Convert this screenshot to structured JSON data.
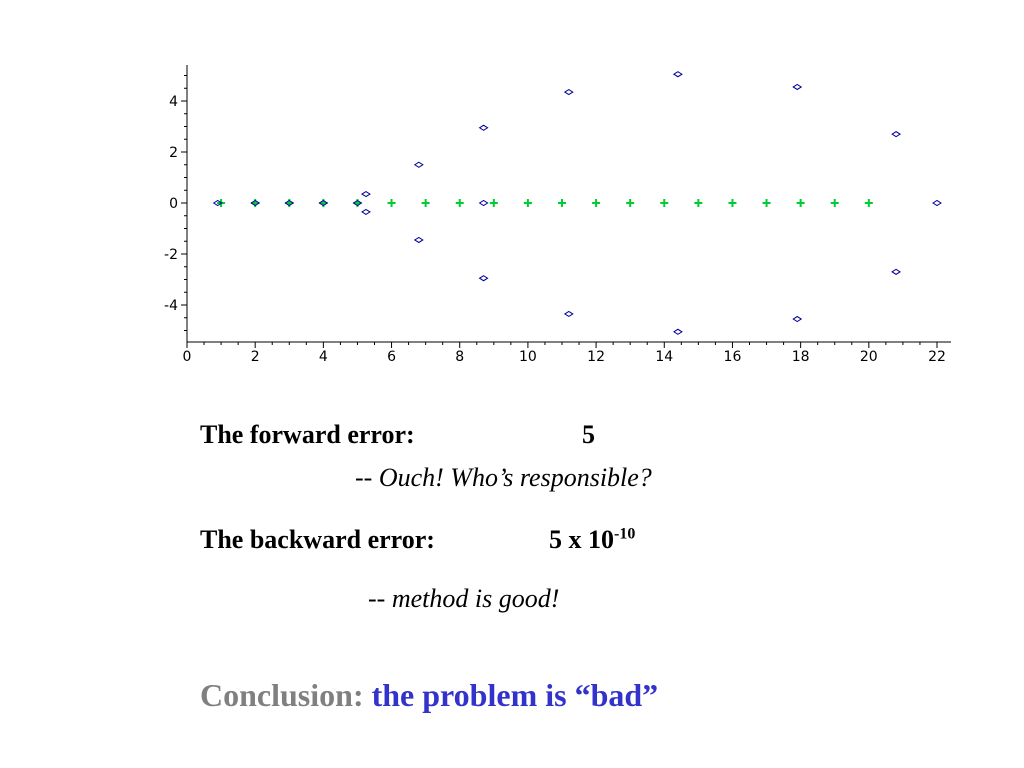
{
  "chart_data": {
    "type": "scatter",
    "title": "",
    "xlabel": "",
    "ylabel": "",
    "xlim": [
      0,
      22
    ],
    "ylim": [
      -5.3,
      5.4
    ],
    "xticks": [
      "0",
      "2",
      "4",
      "6",
      "8",
      "10",
      "12",
      "14",
      "16",
      "18",
      "20",
      "22"
    ],
    "yticks": [
      "4",
      "2",
      "0",
      "-2",
      "-4"
    ],
    "grid": false,
    "series": [
      {
        "marker": "plus",
        "color": "#00cc33",
        "points": [
          [
            1,
            0
          ],
          [
            2,
            0
          ],
          [
            3,
            0
          ],
          [
            4,
            0
          ],
          [
            5,
            0
          ],
          [
            6,
            0
          ],
          [
            7,
            0
          ],
          [
            8,
            0
          ],
          [
            9,
            0
          ],
          [
            10,
            0
          ],
          [
            11,
            0
          ],
          [
            12,
            0
          ],
          [
            13,
            0
          ],
          [
            14,
            0
          ],
          [
            15,
            0
          ],
          [
            16,
            0
          ],
          [
            17,
            0
          ],
          [
            18,
            0
          ],
          [
            19,
            0
          ],
          [
            20,
            0
          ]
        ]
      },
      {
        "marker": "diamond",
        "color": "#000099",
        "points": [
          [
            0.9,
            0
          ],
          [
            2,
            0
          ],
          [
            3,
            0
          ],
          [
            4,
            0
          ],
          [
            5.0,
            0
          ],
          [
            5.25,
            0.35
          ],
          [
            5.25,
            -0.35
          ],
          [
            6.8,
            1.5
          ],
          [
            6.8,
            -1.45
          ],
          [
            8.7,
            2.95
          ],
          [
            8.7,
            0
          ],
          [
            8.7,
            -2.95
          ],
          [
            11.2,
            4.35
          ],
          [
            11.2,
            -4.35
          ],
          [
            14.4,
            5.05
          ],
          [
            14.4,
            -5.05
          ],
          [
            17.9,
            4.55
          ],
          [
            17.9,
            -4.55
          ],
          [
            20.8,
            2.7
          ],
          [
            20.8,
            -2.7
          ],
          [
            22,
            0
          ]
        ]
      }
    ]
  },
  "text": {
    "forward_label": "The forward error:",
    "forward_value": "5",
    "forward_comment_prefix": "-- ",
    "forward_comment": "Ouch! Who’s responsible?",
    "backward_label": "The backward error:",
    "backward_value_base": "5 x 10",
    "backward_value_exp": "-10",
    "backward_comment_prefix": "-- ",
    "backward_comment": "method is good!",
    "conclusion_label": "Conclusion:",
    "conclusion_text": "the problem is “bad”"
  }
}
